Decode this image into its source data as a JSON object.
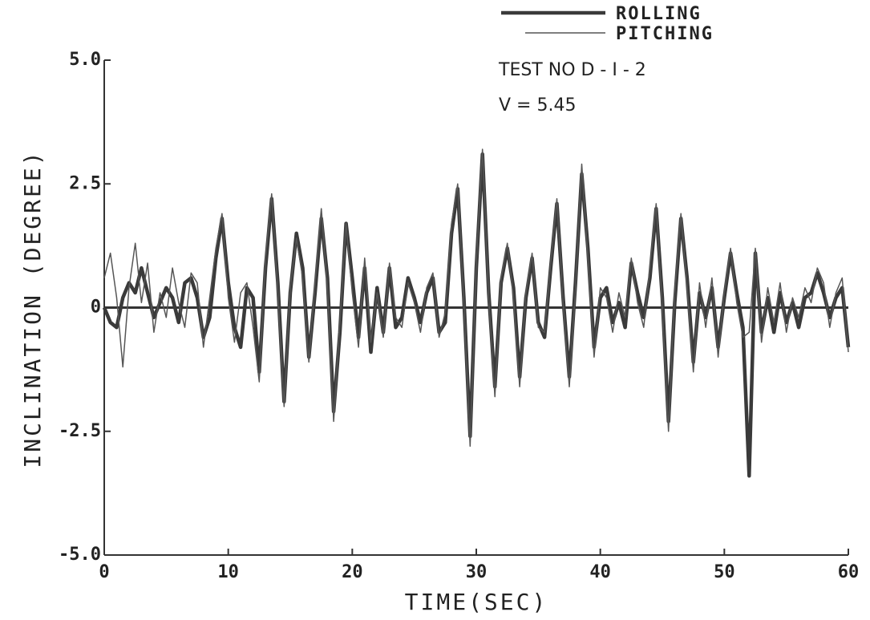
{
  "chart_data": {
    "type": "line",
    "xlabel": "TIME(SEC)",
    "ylabel": "INCLINATION (DEGREE)",
    "annotations": [
      "TEST NO D - I - 2",
      "V = 5.45"
    ],
    "x": [
      0,
      0.5,
      1,
      1.5,
      2,
      2.5,
      3,
      3.5,
      4,
      4.5,
      5,
      5.5,
      6,
      6.5,
      7,
      7.5,
      8,
      8.5,
      9,
      9.5,
      10,
      10.5,
      11,
      11.5,
      12,
      12.5,
      13,
      13.5,
      14,
      14.5,
      15,
      15.5,
      16,
      16.5,
      17,
      17.5,
      18,
      18.5,
      19,
      19.5,
      20,
      20.5,
      21,
      21.5,
      22,
      22.5,
      23,
      23.5,
      24,
      24.5,
      25,
      25.5,
      26,
      26.5,
      27,
      27.5,
      28,
      28.5,
      29,
      29.5,
      30,
      30.5,
      31,
      31.5,
      32,
      32.5,
      33,
      33.5,
      34,
      34.5,
      35,
      35.5,
      36,
      36.5,
      37,
      37.5,
      38,
      38.5,
      39,
      39.5,
      40,
      40.5,
      41,
      41.5,
      42,
      42.5,
      43,
      43.5,
      44,
      44.5,
      45,
      45.5,
      46,
      46.5,
      47,
      47.5,
      48,
      48.5,
      49,
      49.5,
      50,
      50.5,
      51,
      51.5,
      52,
      52.5,
      53,
      53.5,
      54,
      54.5,
      55,
      55.5,
      56,
      56.5,
      57,
      57.5,
      58,
      58.5,
      59,
      59.5,
      60
    ],
    "series": [
      {
        "name": "ROLLING",
        "color": "#3a3a3a",
        "line_width": 4.5,
        "values": [
          0,
          -0.3,
          -0.4,
          0.2,
          0.5,
          0.3,
          0.8,
          0.3,
          -0.2,
          0.1,
          0.4,
          0.2,
          -0.3,
          0.5,
          0.6,
          0.2,
          -0.6,
          -0.2,
          1.0,
          1.8,
          0.5,
          -0.4,
          -0.8,
          0.4,
          0.2,
          -1.3,
          0.8,
          2.2,
          0.5,
          -1.9,
          0.3,
          1.5,
          0.8,
          -1.0,
          0.3,
          1.8,
          0.6,
          -2.1,
          -0.5,
          1.7,
          0.6,
          -0.6,
          0.8,
          -0.9,
          0.4,
          -0.5,
          0.8,
          -0.4,
          -0.2,
          0.6,
          0.2,
          -0.3,
          0.3,
          0.6,
          -0.5,
          -0.3,
          1.5,
          2.4,
          0.2,
          -2.6,
          0.8,
          3.1,
          0.3,
          -1.6,
          0.5,
          1.2,
          0.4,
          -1.4,
          0.2,
          1.0,
          -0.3,
          -0.6,
          0.8,
          2.1,
          0.2,
          -1.4,
          0.5,
          2.7,
          1.2,
          -0.8,
          0.2,
          0.4,
          -0.3,
          0.1,
          -0.4,
          0.9,
          0.3,
          -0.2,
          0.6,
          2.0,
          0.2,
          -2.3,
          0.1,
          1.8,
          0.6,
          -1.1,
          0.3,
          -0.2,
          0.4,
          -0.8,
          0.2,
          1.1,
          0.3,
          -0.4,
          -3.4,
          1.1,
          -0.5,
          0.2,
          -0.5,
          0.3,
          -0.3,
          0.1,
          -0.4,
          0.2,
          0.3,
          0.7,
          0.3,
          -0.2,
          0.2,
          0.4,
          -0.8
        ]
      },
      {
        "name": "PITCHING",
        "color": "#555555",
        "line_width": 1.5,
        "values": [
          0.6,
          1.1,
          0.2,
          -1.2,
          0.4,
          1.3,
          0.1,
          0.9,
          -0.5,
          0.3,
          -0.2,
          0.8,
          0.1,
          -0.4,
          0.7,
          0.5,
          -0.8,
          0.2,
          1.2,
          1.9,
          0.2,
          -0.7,
          0.3,
          0.5,
          -0.4,
          -1.5,
          1.0,
          2.3,
          0.3,
          -2.0,
          0.4,
          1.4,
          0.6,
          -1.1,
          0.5,
          2.0,
          0.4,
          -2.3,
          -0.3,
          1.7,
          0.3,
          -0.8,
          1.0,
          -0.7,
          0.3,
          -0.6,
          0.9,
          -0.2,
          -0.4,
          0.5,
          0.1,
          -0.5,
          0.4,
          0.7,
          -0.6,
          -0.1,
          1.7,
          2.5,
          0.1,
          -2.8,
          0.9,
          3.2,
          0.2,
          -1.8,
          0.6,
          1.3,
          0.2,
          -1.6,
          0.3,
          1.1,
          -0.4,
          -0.5,
          0.9,
          2.2,
          0.1,
          -1.6,
          0.4,
          2.9,
          1.0,
          -1.0,
          0.4,
          0.2,
          -0.5,
          0.3,
          -0.2,
          1.0,
          0.1,
          -0.4,
          0.8,
          2.1,
          0.0,
          -2.5,
          0.3,
          1.9,
          0.4,
          -1.3,
          0.5,
          -0.4,
          0.6,
          -1.0,
          0.3,
          1.2,
          0.1,
          -0.6,
          -0.5,
          1.2,
          -0.7,
          0.4,
          -0.3,
          0.5,
          -0.5,
          0.2,
          -0.2,
          0.4,
          0.1,
          0.8,
          0.5,
          -0.4,
          0.3,
          0.6,
          -0.9
        ]
      }
    ],
    "xlim": [
      0,
      60
    ],
    "xticks": [
      0,
      10,
      20,
      30,
      40,
      50,
      60
    ],
    "ylim": [
      -5,
      5
    ],
    "yticks": [
      {
        "value": -5,
        "label": "-5.0"
      },
      -2.5,
      0,
      2.5,
      {
        "value": 5,
        "label": "5.0"
      }
    ],
    "zero_line": true,
    "grid": false,
    "legend": "upper right"
  }
}
